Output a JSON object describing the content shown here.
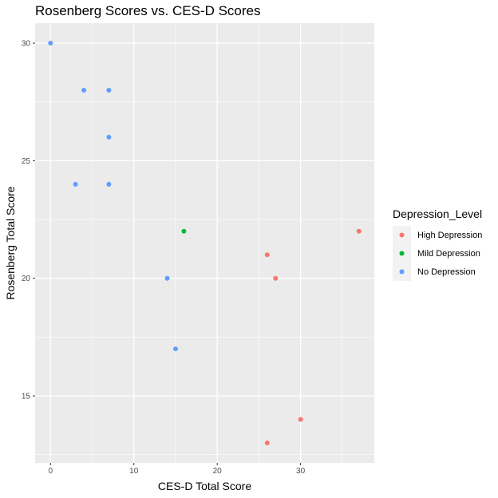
{
  "chart_data": {
    "type": "scatter",
    "title": "Rosenberg Scores vs. CES-D Scores",
    "xlabel": "CES-D Total Score",
    "ylabel": "Rosenberg Total Score",
    "xlim": [
      -1.85,
      38.85
    ],
    "ylim": [
      12.15,
      30.85
    ],
    "x_ticks": [
      0,
      10,
      20,
      30
    ],
    "y_ticks": [
      15,
      20,
      25,
      30
    ],
    "grid": true,
    "legend": {
      "title": "Depression_Level",
      "placement": "right"
    },
    "series": [
      {
        "name": "High Depression",
        "color": "#F8766D",
        "points": [
          {
            "x": 37,
            "y": 22
          },
          {
            "x": 26,
            "y": 21
          },
          {
            "x": 27,
            "y": 20
          },
          {
            "x": 30,
            "y": 14
          },
          {
            "x": 26,
            "y": 13
          }
        ]
      },
      {
        "name": "Mild Depression",
        "color": "#00BA38",
        "points": [
          {
            "x": 16,
            "y": 22
          }
        ]
      },
      {
        "name": "No Depression",
        "color": "#619CFF",
        "points": [
          {
            "x": 0,
            "y": 30
          },
          {
            "x": 4,
            "y": 28
          },
          {
            "x": 7,
            "y": 28
          },
          {
            "x": 7,
            "y": 26
          },
          {
            "x": 3,
            "y": 24
          },
          {
            "x": 7,
            "y": 24
          },
          {
            "x": 14,
            "y": 20
          },
          {
            "x": 15,
            "y": 17
          }
        ]
      }
    ]
  }
}
